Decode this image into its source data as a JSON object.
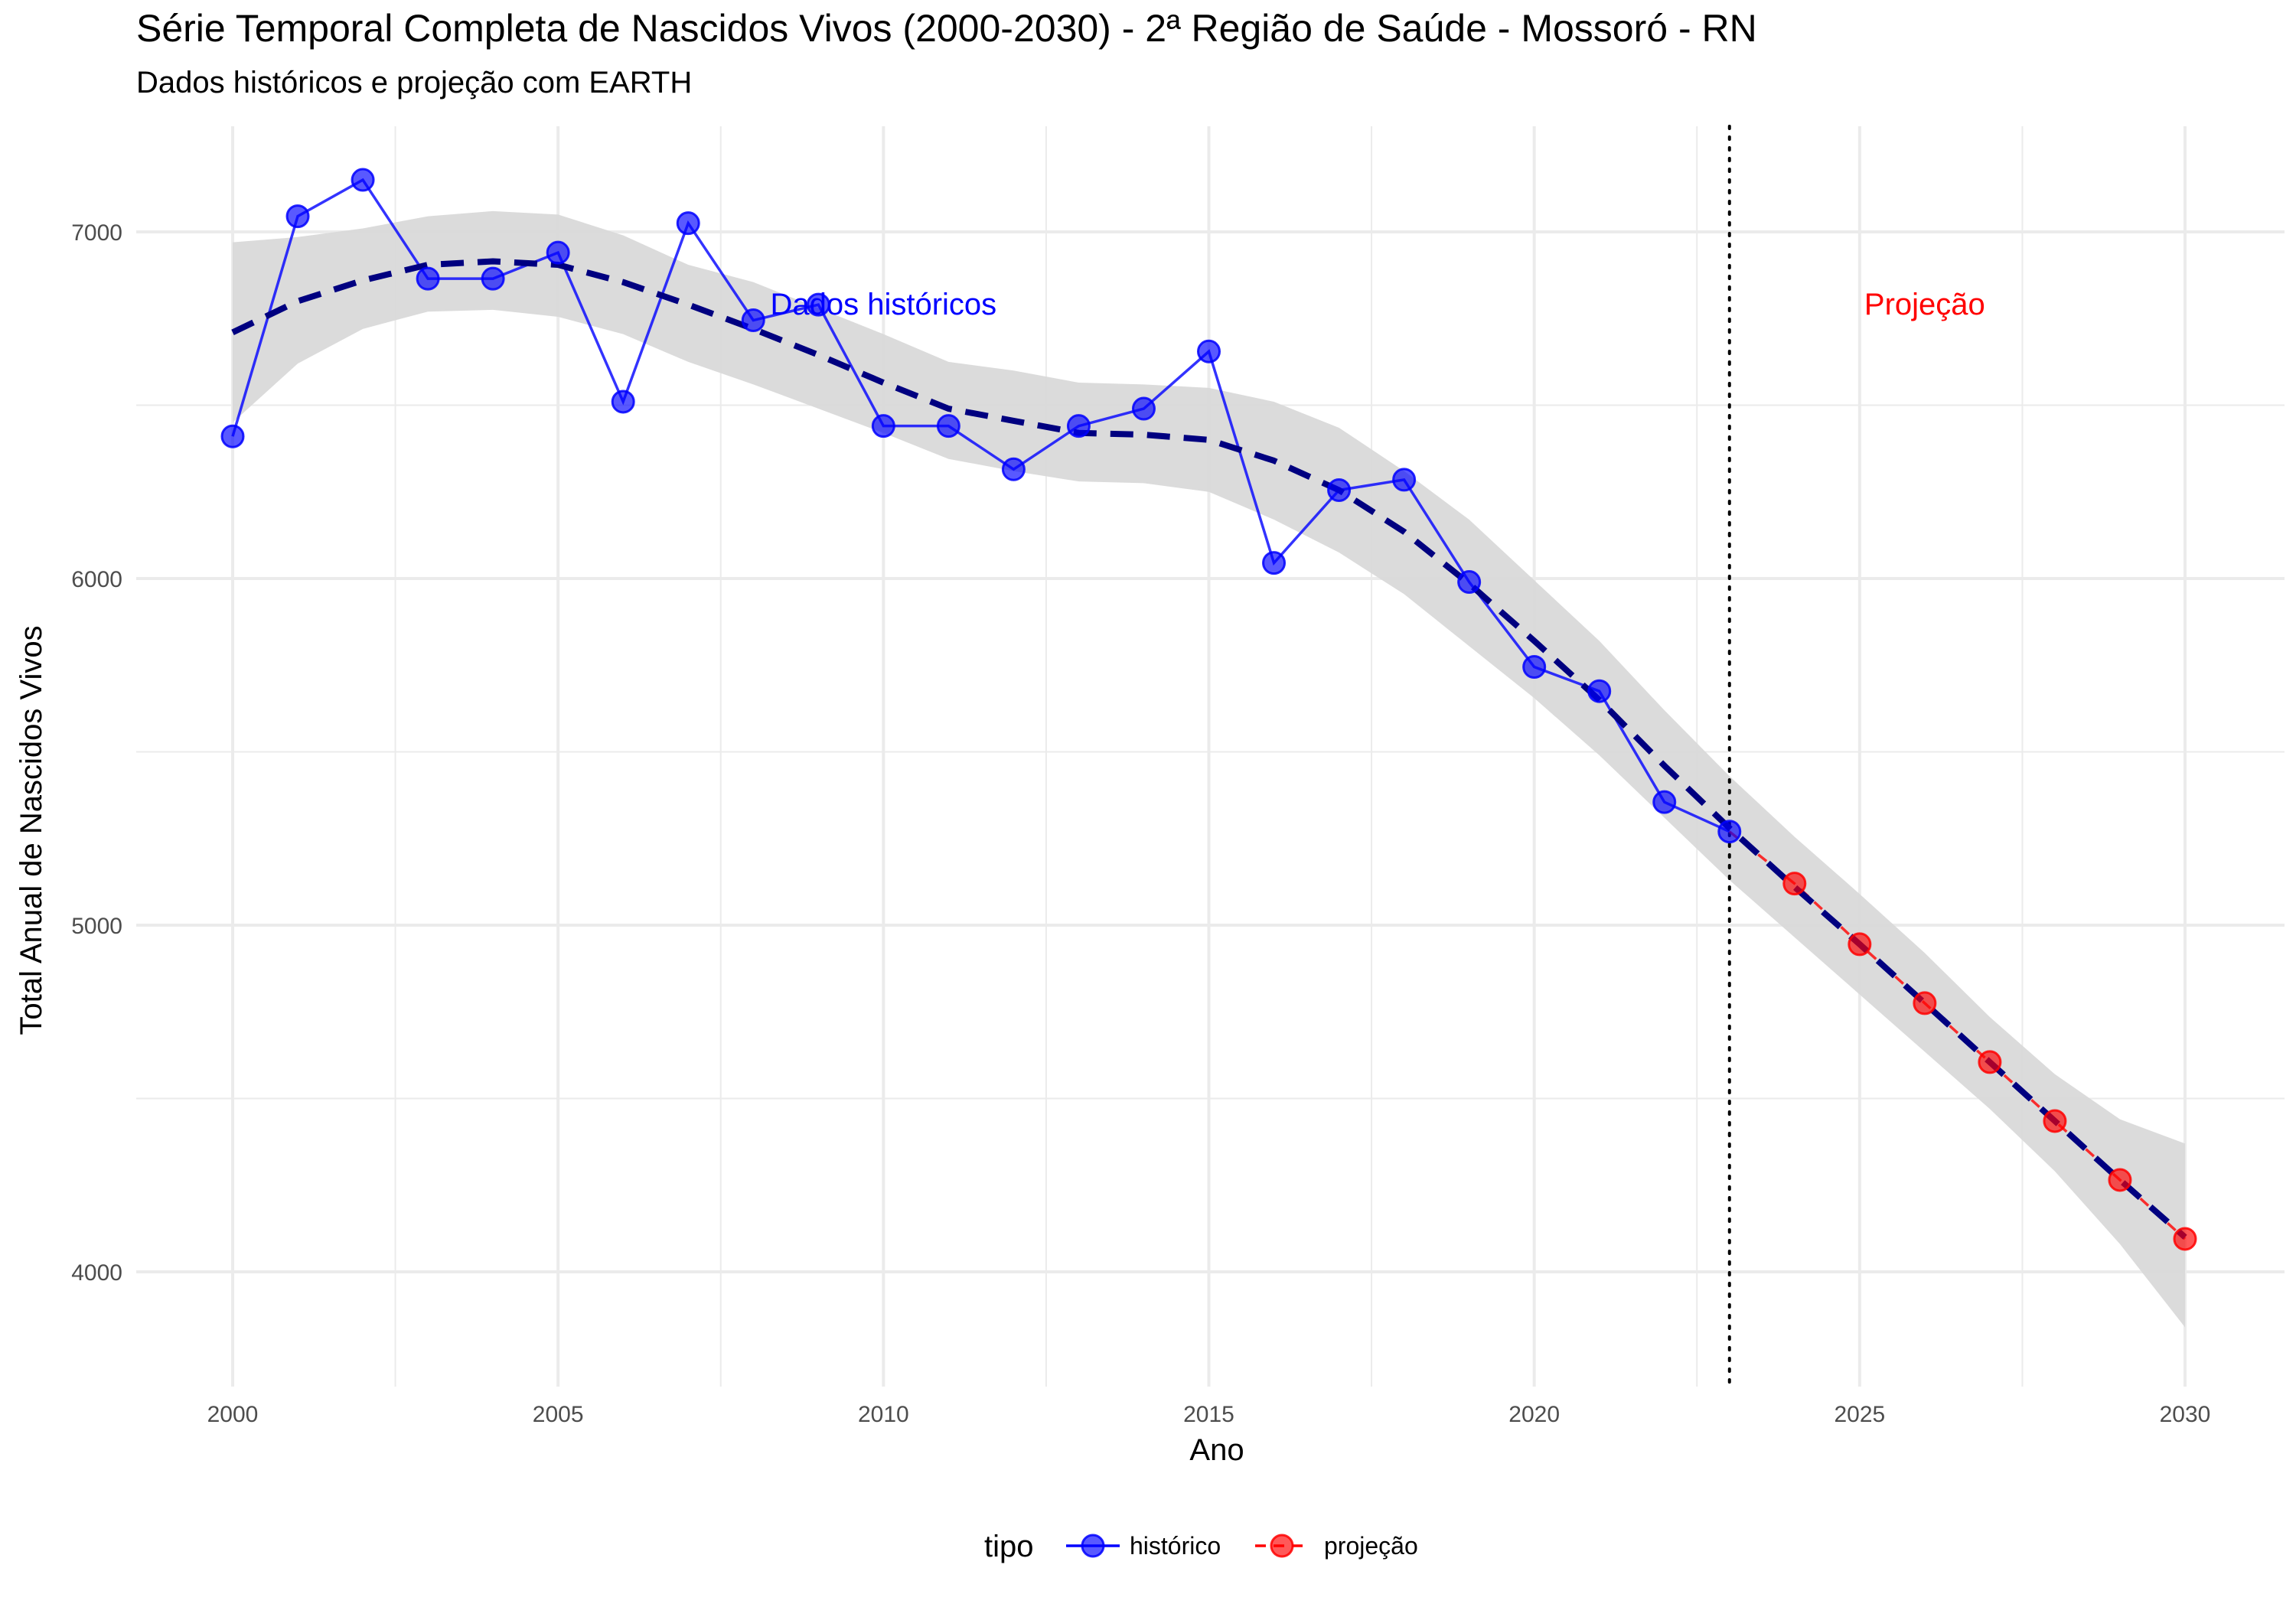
{
  "chart_data": {
    "type": "line",
    "title": "Série Temporal Completa de Nascidos Vivos (2000-2030) -  2ª Região de Saúde - Mossoró - RN",
    "subtitle": "Dados históricos e projeção com EARTH",
    "xlabel": "Ano",
    "ylabel": "Total Anual de Nascidos Vivos",
    "xlim": [
      1999.5,
      2030.5
    ],
    "ylim": [
      3700,
      7300
    ],
    "x_ticks": [
      2000,
      2005,
      2010,
      2015,
      2020,
      2025,
      2030
    ],
    "y_ticks": [
      4000,
      5000,
      6000,
      7000
    ],
    "grid": true,
    "legend": {
      "title": "tipo",
      "position": "bottom"
    },
    "annotations": [
      {
        "text": "Dados históricos",
        "x": 2010,
        "y": 6790,
        "color": "#0000ff"
      },
      {
        "text": "Projeção",
        "x": 2026,
        "y": 6790,
        "color": "#ff0000"
      }
    ],
    "vline": {
      "x": 2023,
      "style": "dotted",
      "color": "#000000"
    },
    "series": [
      {
        "name": "histórico",
        "color": "#0000ff",
        "x": [
          2000,
          2001,
          2002,
          2003,
          2004,
          2005,
          2006,
          2007,
          2008,
          2009,
          2010,
          2011,
          2012,
          2013,
          2014,
          2015,
          2016,
          2017,
          2018,
          2019,
          2020,
          2021,
          2022,
          2023
        ],
        "y": [
          6410,
          7045,
          7150,
          6865,
          6865,
          6940,
          6510,
          7025,
          6745,
          6790,
          6440,
          6440,
          6315,
          6440,
          6490,
          6655,
          6045,
          6255,
          6285,
          5990,
          5745,
          5675,
          5355,
          5270
        ]
      },
      {
        "name": "projeção",
        "color": "#ff0000",
        "x": [
          2023,
          2024,
          2025,
          2026,
          2027,
          2028,
          2029,
          2030
        ],
        "y": [
          5270,
          5120,
          4945,
          4775,
          4605,
          4435,
          4265,
          4095
        ],
        "marker_x": [
          2024,
          2025,
          2026,
          2027,
          2028,
          2029,
          2030
        ],
        "marker_y": [
          5120,
          4945,
          4775,
          4605,
          4435,
          4265,
          4095
        ]
      }
    ],
    "smooth": {
      "color": "#000080",
      "style": "dashed",
      "x": [
        2000,
        2001,
        2002,
        2003,
        2004,
        2005,
        2006,
        2007,
        2008,
        2009,
        2010,
        2011,
        2012,
        2013,
        2014,
        2015,
        2016,
        2017,
        2018,
        2019,
        2020,
        2021,
        2022,
        2023,
        2024,
        2025,
        2026,
        2027,
        2028,
        2029,
        2030
      ],
      "y": [
        6710,
        6800,
        6860,
        6905,
        6915,
        6905,
        6855,
        6790,
        6720,
        6645,
        6565,
        6490,
        6455,
        6420,
        6415,
        6400,
        6340,
        6255,
        6135,
        5985,
        5820,
        5650,
        5460,
        5280,
        5110,
        4945,
        4775,
        4605,
        4435,
        4265,
        4100
      ],
      "lower": [
        6450,
        6620,
        6720,
        6770,
        6775,
        6755,
        6705,
        6625,
        6560,
        6490,
        6420,
        6345,
        6310,
        6280,
        6275,
        6250,
        6170,
        6075,
        5955,
        5805,
        5655,
        5490,
        5310,
        5130,
        4965,
        4800,
        4635,
        4470,
        4290,
        4080,
        3840
      ],
      "upper": [
        6970,
        6985,
        7010,
        7045,
        7060,
        7050,
        6990,
        6905,
        6855,
        6780,
        6705,
        6625,
        6600,
        6565,
        6560,
        6550,
        6510,
        6435,
        6310,
        6170,
        5995,
        5820,
        5620,
        5430,
        5255,
        5090,
        4920,
        4735,
        4570,
        4440,
        4370
      ],
      "fill_color": "#d9d9d9"
    }
  }
}
